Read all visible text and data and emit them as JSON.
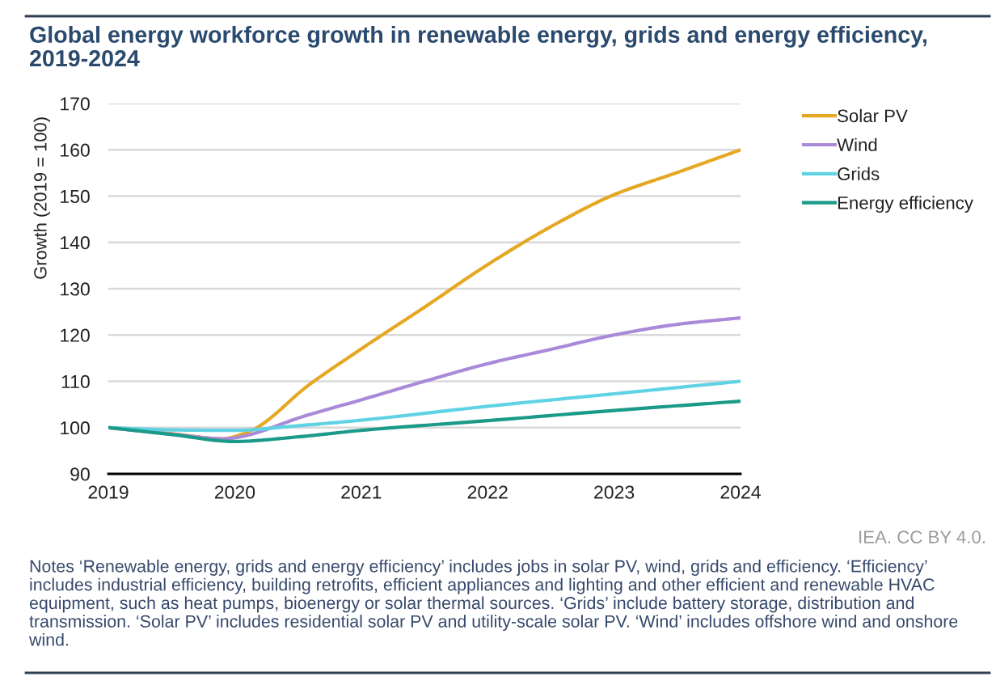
{
  "chart_data": {
    "type": "line",
    "title": "Global energy workforce growth in renewable energy, grids and energy efficiency,\n2019-2024",
    "ylabel": "Growth (2019 = 100)",
    "xlim": [
      2019,
      2024
    ],
    "xticks": [
      2019,
      2020,
      2021,
      2022,
      2023,
      2024
    ],
    "ylim": [
      90,
      170
    ],
    "yticks": [
      90,
      100,
      110,
      120,
      130,
      140,
      150,
      160,
      170
    ],
    "grid": "y",
    "legend": "top right",
    "line_style": "solid",
    "series": [
      {
        "name": "Solar PV",
        "color": "#e5a823",
        "x": [
          2019,
          2019.5,
          2019.9,
          2020.1,
          2020.6,
          2021,
          2021.5,
          2022,
          2022.5,
          2023,
          2023.5,
          2024
        ],
        "values": [
          100,
          98.7,
          97.6,
          99,
          109.5,
          117,
          126,
          135.2,
          143.4,
          150.3,
          155.1,
          160
        ]
      },
      {
        "name": "Wind",
        "color": "#a98ad9",
        "x": [
          2019,
          2019.5,
          2019.9,
          2020.6,
          2021,
          2021.5,
          2022,
          2022.5,
          2023,
          2023.5,
          2024
        ],
        "values": [
          100,
          98.6,
          97.6,
          102.9,
          106,
          110,
          113.8,
          116.9,
          120,
          122.3,
          123.7
        ]
      },
      {
        "name": "Grids",
        "color": "#5fd3e3",
        "x": [
          2019,
          2019.5,
          2020,
          2020.5,
          2021,
          2022,
          2023,
          2024
        ],
        "values": [
          100,
          99.5,
          99.4,
          100.4,
          101.6,
          104.6,
          107.3,
          110
        ]
      },
      {
        "name": "Energy efficiency",
        "color": "#1a9a88",
        "x": [
          2019,
          2019.5,
          2020,
          2020.5,
          2021,
          2022,
          2023,
          2024
        ],
        "values": [
          100,
          98.5,
          97,
          98,
          99.4,
          101.5,
          103.7,
          105.7
        ]
      }
    ],
    "annotations": [
      "IEA. CC BY 4.0.",
      "Notes ‘Renewable energy, grids and energy efficiency’ includes jobs in solar PV, wind, grids and efficiency. ‘Efficiency’ includes industrial efficiency, building retrofits, efficient appliances and lighting and other efficient and renewable HVAC equipment, such as heat pumps, bioenergy or solar thermal sources. ‘Grids’ include battery storage, distribution and transmission. ‘Solar PV’ includes residential solar PV and utility-scale solar PV. ‘Wind’ includes offshore wind and onshore wind."
    ]
  }
}
